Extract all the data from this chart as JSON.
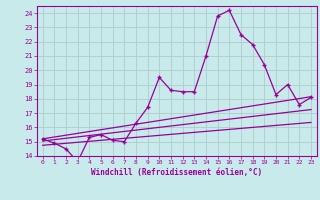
{
  "xlabel": "Windchill (Refroidissement éolien,°C)",
  "background_color": "#c8eaea",
  "grid_color": "#b0cccc",
  "line_color": "#990099",
  "xlim": [
    -0.5,
    23.5
  ],
  "ylim": [
    14,
    24.5
  ],
  "xticks": [
    0,
    1,
    2,
    3,
    4,
    5,
    6,
    7,
    8,
    9,
    10,
    11,
    12,
    13,
    14,
    15,
    16,
    17,
    18,
    19,
    20,
    21,
    22,
    23
  ],
  "yticks": [
    14,
    15,
    16,
    17,
    18,
    19,
    20,
    21,
    22,
    23,
    24
  ],
  "main_x": [
    0,
    1,
    2,
    3,
    4,
    5,
    6,
    7,
    8,
    9,
    10,
    11,
    12,
    13,
    14,
    15,
    16,
    17,
    18,
    19,
    20,
    21,
    22,
    23
  ],
  "main_y": [
    15.2,
    14.9,
    14.5,
    13.6,
    15.3,
    15.5,
    15.1,
    15.0,
    16.3,
    17.4,
    19.5,
    18.6,
    18.5,
    18.5,
    21.0,
    23.8,
    24.2,
    22.5,
    21.8,
    20.4,
    18.3,
    19.0,
    17.6,
    18.1
  ],
  "line1_x": [
    0,
    23
  ],
  "line1_y": [
    15.05,
    17.25
  ],
  "line2_x": [
    0,
    23
  ],
  "line2_y": [
    15.2,
    18.15
  ],
  "line3_x": [
    0,
    23
  ],
  "line3_y": [
    14.75,
    16.35
  ]
}
